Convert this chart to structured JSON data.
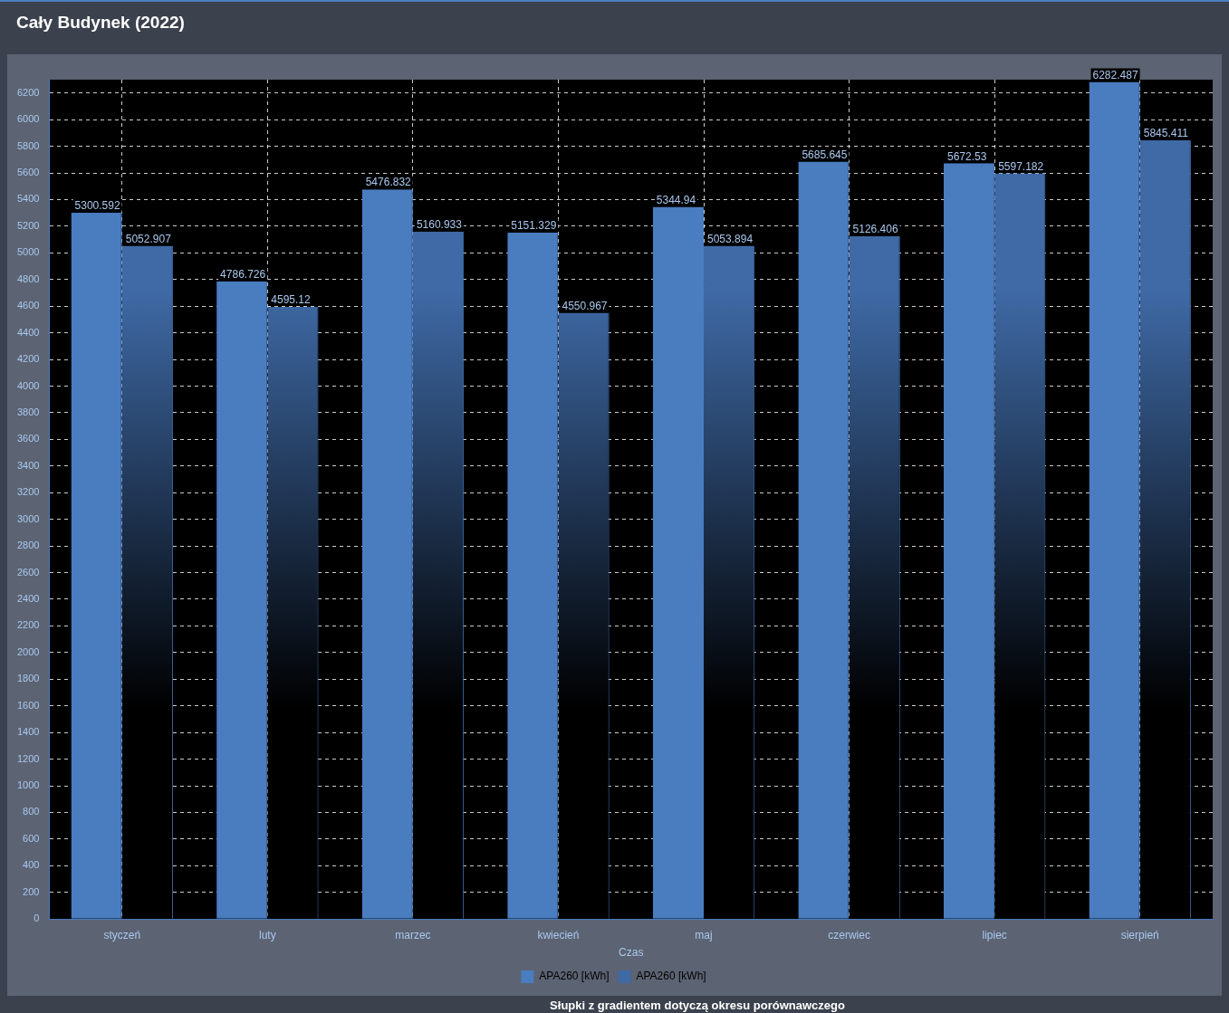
{
  "chart_data": {
    "type": "bar",
    "title": "Cały Budynek (2022)",
    "xlabel": "Czas",
    "categories": [
      "styczeń",
      "luty",
      "marzec",
      "kwiecień",
      "maj",
      "czerwiec",
      "lipiec",
      "sierpień"
    ],
    "series": [
      {
        "name": "APA260 [kWh]",
        "color": "#4a7cc0",
        "values": [
          5300.592,
          4786.726,
          5476.832,
          5151.329,
          5344.94,
          5685.645,
          5672.53,
          6282.487
        ]
      },
      {
        "name": "APA260 [kWh]",
        "color": "#3f6aa6",
        "values": [
          5052.907,
          4595.12,
          5160.933,
          4550.967,
          5053.894,
          5126.406,
          5597.182,
          5845.411
        ]
      }
    ],
    "ylim": [
      0,
      6300
    ],
    "yticks": [
      0,
      200,
      400,
      600,
      800,
      1000,
      1200,
      1400,
      1600,
      1800,
      2000,
      2200,
      2400,
      2600,
      2800,
      3000,
      3200,
      3400,
      3600,
      3800,
      4000,
      4200,
      4400,
      4600,
      4800,
      5000,
      5200,
      5400,
      5600,
      5800,
      6000,
      6200
    ],
    "grid": true,
    "legend": "bottom",
    "data_labels": true,
    "annotations": [
      "Słupki z gradientem dotyczą okresu porównawczego"
    ]
  }
}
